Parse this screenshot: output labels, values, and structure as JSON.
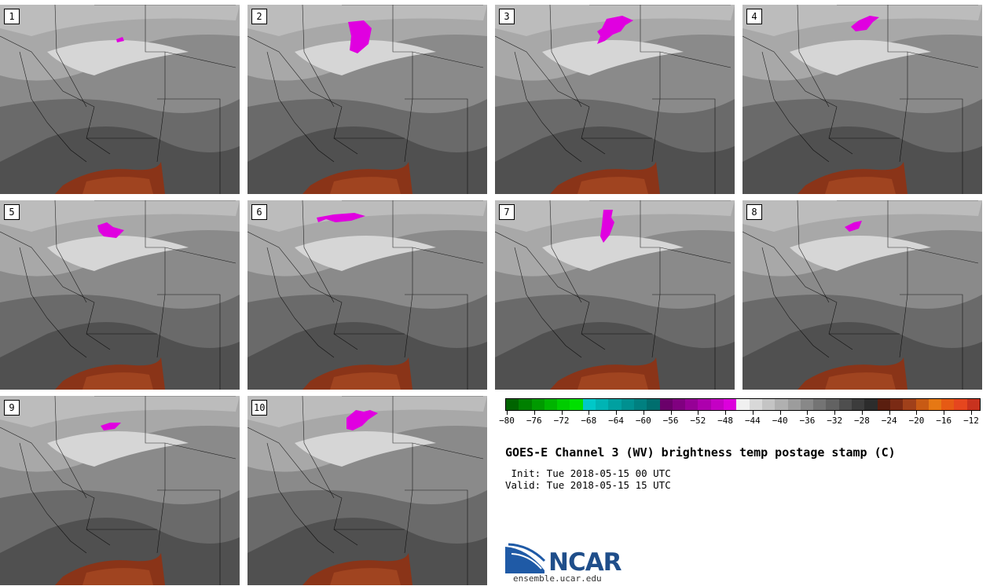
{
  "panels": [
    {
      "label": "1"
    },
    {
      "label": "2"
    },
    {
      "label": "3"
    },
    {
      "label": "4"
    },
    {
      "label": "5"
    },
    {
      "label": "6"
    },
    {
      "label": "7"
    },
    {
      "label": "8"
    },
    {
      "label": "9"
    },
    {
      "label": "10"
    }
  ],
  "colorbar": {
    "colors": [
      "#006400",
      "#008000",
      "#009a00",
      "#00b400",
      "#00cc00",
      "#00e000",
      "#00c8c8",
      "#00b4b4",
      "#00a0a0",
      "#009090",
      "#008080",
      "#006e6e",
      "#6a006a",
      "#800080",
      "#960096",
      "#ad00ad",
      "#c400c4",
      "#dc00dc",
      "#f0f0f0",
      "#d8d8d8",
      "#c4c4c4",
      "#b0b0b0",
      "#9c9c9c",
      "#888888",
      "#747474",
      "#626262",
      "#4e4e4e",
      "#3c3c3c",
      "#2c2c2c",
      "#5a1e0f",
      "#7a2a14",
      "#a0401a",
      "#c85a14",
      "#e67814",
      "#e65a14",
      "#e6461e",
      "#c8321e"
    ],
    "tick_labels": [
      "−80",
      "−76",
      "−72",
      "−68",
      "−64",
      "−60",
      "−56",
      "−52",
      "−48",
      "−44",
      "−40",
      "−36",
      "−32",
      "−28",
      "−24",
      "−20",
      "−16",
      "−12"
    ]
  },
  "title": "GOES-E Channel 3 (WV) brightness temp postage stamp (C)",
  "init_line": " Init: Tue 2018-05-15 00 UTC",
  "valid_line": "Valid: Tue 2018-05-15 15 UTC",
  "logo": {
    "text": "NCAR",
    "url": "ensemble.ucar.edu",
    "brand_color": "#1f4e8a"
  }
}
